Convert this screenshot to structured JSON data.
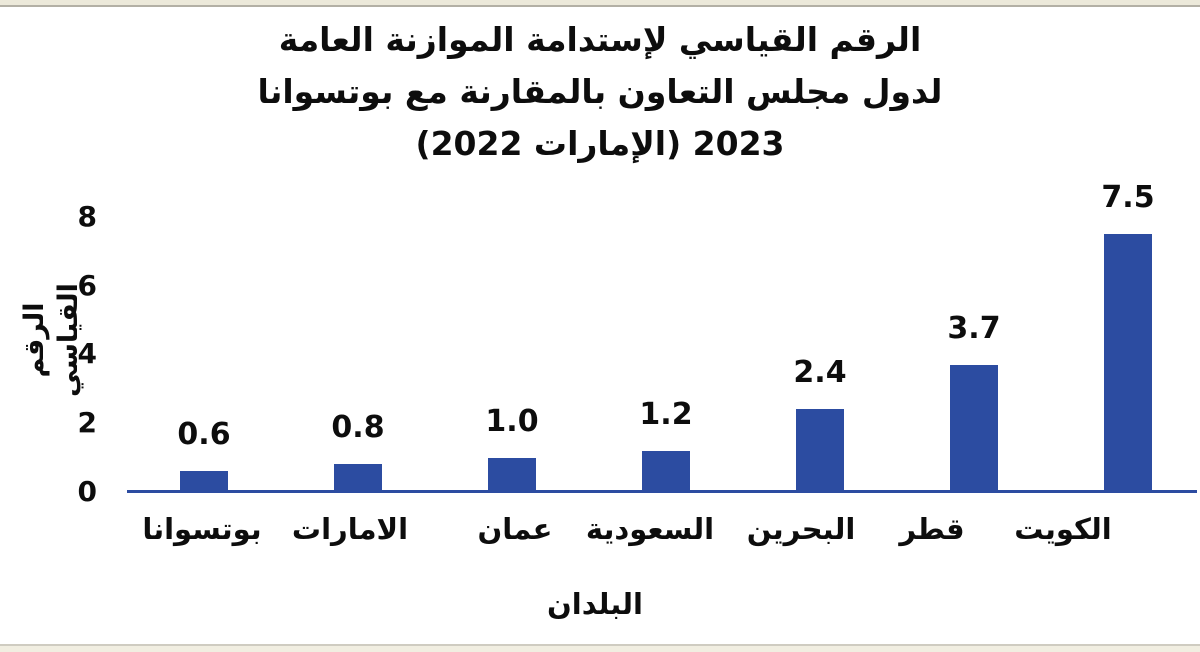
{
  "page": {
    "background_color": "#ffffff",
    "frame_strip_color": "#ece9da",
    "text_color": "#0d0d0d"
  },
  "chart_data": {
    "type": "bar",
    "title_lines": [
      "الرقم القياسي لإستدامة الموازنة العامة",
      "لدول مجلس التعاون بالمقارنة مع بوتسوانا",
      "2023 (الإمارات 2022)"
    ],
    "categories": [
      "بوتسوانا",
      "الامارات",
      "عمان",
      "السعودية",
      "البحرين",
      "قطر",
      "الكويت"
    ],
    "values": [
      0.6,
      0.8,
      1.0,
      1.2,
      2.4,
      3.7,
      7.5
    ],
    "value_labels": [
      "0.6",
      "0.8",
      "1.0",
      "1.2",
      "2.4",
      "3.7",
      "7.5"
    ],
    "xlabel": "البلدان",
    "ylabel": "الرقم القياسي",
    "y_ticks": [
      0,
      2,
      4,
      6,
      8
    ],
    "ylim": [
      0,
      8
    ],
    "bar_color": "#2c4ca1",
    "axis_line_color": "#2c4ca1",
    "grid": false,
    "legend": false
  }
}
